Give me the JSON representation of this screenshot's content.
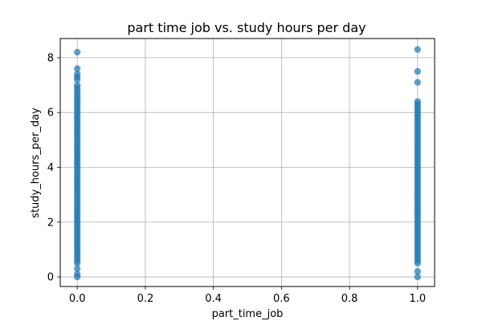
{
  "chart_data": {
    "type": "scatter",
    "title": "part time job vs. study hours per day",
    "xlabel": "part_time_job",
    "ylabel": "study_hours_per_day",
    "xlim": [
      -0.05,
      1.05
    ],
    "ylim": [
      -0.35,
      8.7
    ],
    "grid": true,
    "marker_color": "#1f77b4",
    "x_ticks": [
      {
        "value": 0.0,
        "label": "0.0"
      },
      {
        "value": 0.2,
        "label": "0.2"
      },
      {
        "value": 0.4,
        "label": "0.4"
      },
      {
        "value": 0.6,
        "label": "0.6"
      },
      {
        "value": 0.8,
        "label": "0.8"
      },
      {
        "value": 1.0,
        "label": "1.0"
      }
    ],
    "y_ticks": [
      {
        "value": 0,
        "label": "0"
      },
      {
        "value": 2,
        "label": "2"
      },
      {
        "value": 4,
        "label": "4"
      },
      {
        "value": 6,
        "label": "6"
      },
      {
        "value": 8,
        "label": "8"
      }
    ],
    "series": [
      {
        "x": 0,
        "y": [
          0.0,
          0.1,
          0.3,
          0.5,
          0.6,
          0.7,
          0.8,
          0.9,
          1.0,
          1.1,
          1.2,
          1.3,
          1.4,
          1.5,
          1.6,
          1.7,
          1.8,
          1.9,
          2.0,
          2.1,
          2.2,
          2.3,
          2.4,
          2.5,
          2.6,
          2.7,
          2.8,
          2.9,
          3.0,
          3.1,
          3.2,
          3.3,
          3.4,
          3.5,
          3.6,
          3.7,
          3.8,
          3.9,
          4.0,
          4.1,
          4.2,
          4.3,
          4.4,
          4.5,
          4.6,
          4.7,
          4.8,
          4.9,
          5.0,
          5.1,
          5.2,
          5.3,
          5.4,
          5.5,
          5.6,
          5.7,
          5.8,
          5.9,
          6.0,
          6.1,
          6.2,
          6.3,
          6.4,
          6.5,
          6.6,
          6.7,
          6.8,
          6.9,
          7.0,
          7.2,
          7.3,
          7.4,
          7.6,
          8.2
        ]
      },
      {
        "x": 1,
        "y": [
          0.0,
          0.2,
          0.5,
          0.6,
          0.7,
          0.8,
          0.9,
          1.0,
          1.1,
          1.2,
          1.3,
          1.4,
          1.5,
          1.6,
          1.7,
          1.8,
          1.9,
          2.0,
          2.1,
          2.2,
          2.3,
          2.4,
          2.5,
          2.6,
          2.7,
          2.8,
          2.9,
          3.0,
          3.1,
          3.2,
          3.3,
          3.4,
          3.5,
          3.6,
          3.7,
          3.8,
          3.9,
          4.0,
          4.1,
          4.2,
          4.3,
          4.4,
          4.5,
          4.6,
          4.7,
          4.8,
          4.9,
          5.0,
          5.1,
          5.2,
          5.3,
          5.4,
          5.5,
          5.6,
          5.7,
          5.8,
          5.9,
          6.0,
          6.1,
          6.2,
          6.3,
          6.4,
          7.1,
          7.5,
          8.3
        ]
      }
    ]
  }
}
